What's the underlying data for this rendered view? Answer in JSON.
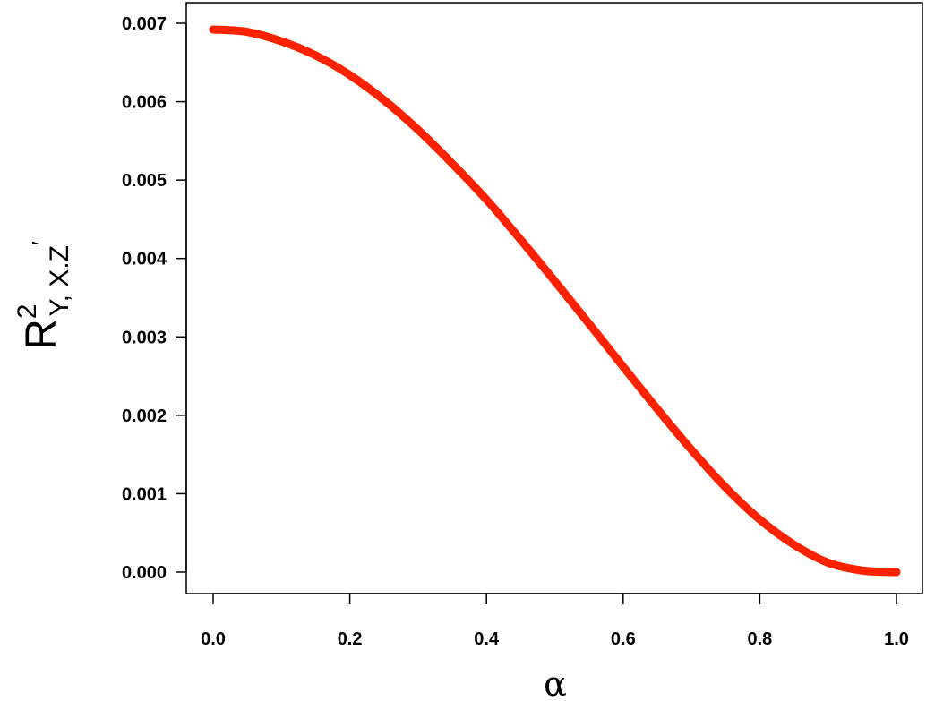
{
  "chart_data": {
    "type": "line",
    "title": "",
    "xlabel": "α",
    "ylabel": {
      "base": "R",
      "superscript": "2",
      "subscript": "Y, X.Z",
      "prime": "′"
    },
    "xlim": [
      0.0,
      1.0
    ],
    "ylim": [
      0.0,
      0.007
    ],
    "x_ticks": [
      "0.0",
      "0.2",
      "0.4",
      "0.6",
      "0.8",
      "1.0"
    ],
    "y_ticks": [
      "0.000",
      "0.001",
      "0.002",
      "0.003",
      "0.004",
      "0.005",
      "0.006",
      "0.007"
    ],
    "grid": false,
    "legend": "none",
    "series": [
      {
        "color": "#ff2200",
        "x": [
          0.0,
          0.05,
          0.1,
          0.15,
          0.2,
          0.25,
          0.3,
          0.35,
          0.4,
          0.45,
          0.5,
          0.55,
          0.6,
          0.65,
          0.7,
          0.75,
          0.8,
          0.85,
          0.9,
          0.95,
          1.0
        ],
        "y": [
          0.00692,
          0.00689,
          0.00677,
          0.00659,
          0.00634,
          0.00602,
          0.00564,
          0.00521,
          0.00475,
          0.00424,
          0.00371,
          0.00317,
          0.00262,
          0.00208,
          0.00156,
          0.00108,
          0.00067,
          0.00035,
          0.00012,
          2e-05,
          0.0
        ]
      }
    ]
  }
}
